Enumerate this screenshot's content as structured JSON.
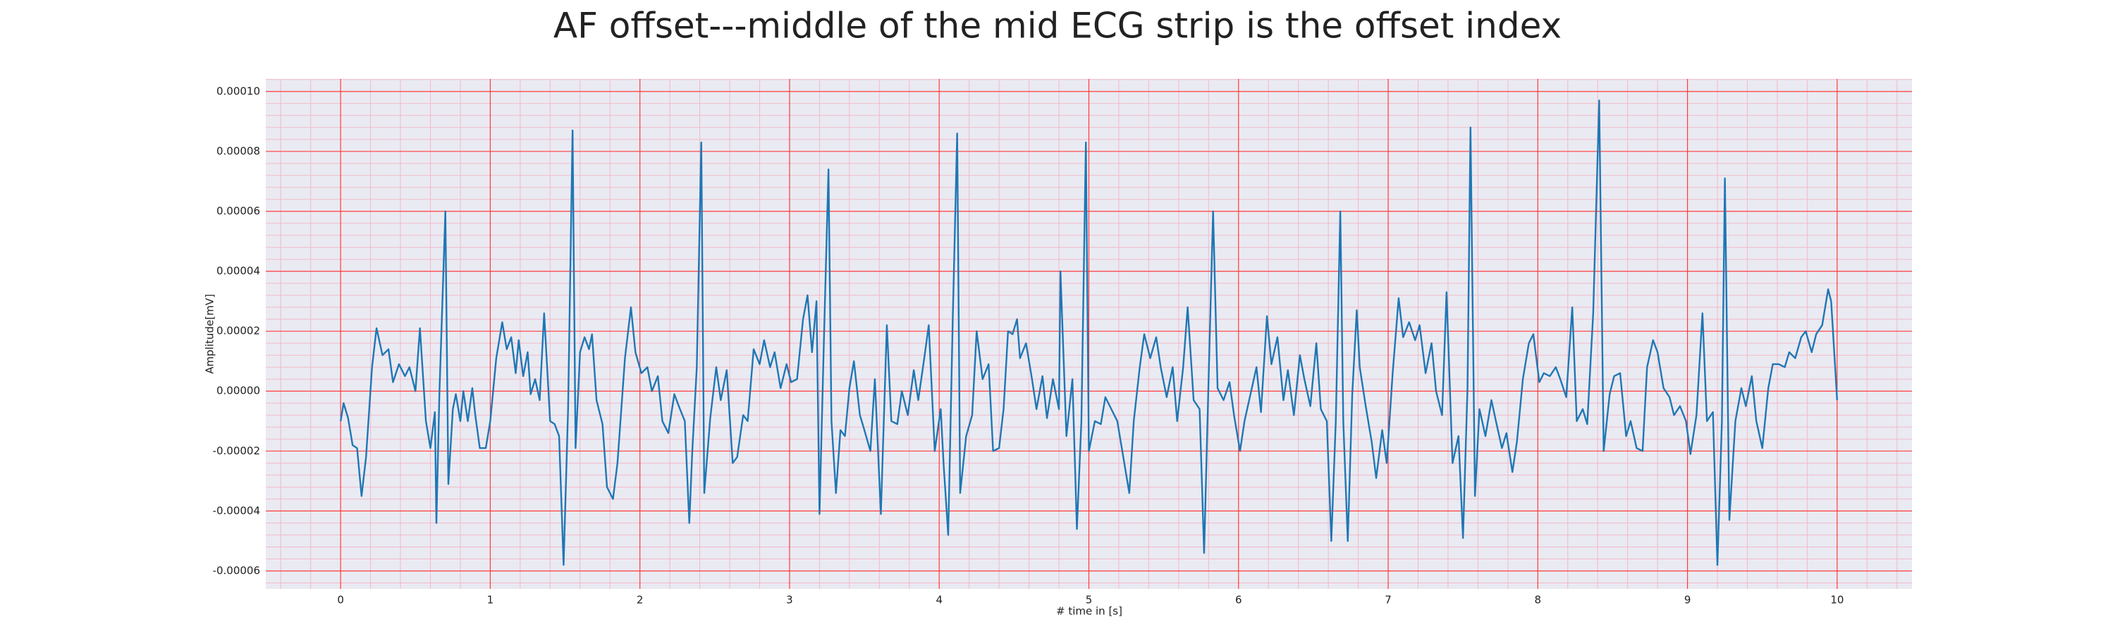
{
  "chart_data": {
    "type": "line",
    "title": "AF offset---middle of the mid ECG strip is the offset index",
    "xlabel": "# time in [s]",
    "ylabel": "Amplitude[mV]",
    "xlim": [
      -0.5,
      10.5
    ],
    "ylim": [
      -6.6e-05,
      0.0001042
    ],
    "xticks": [
      0,
      1,
      2,
      3,
      4,
      5,
      6,
      7,
      8,
      9,
      10
    ],
    "yticks": [
      {
        "value": -6e-05,
        "label": "-0.00006"
      },
      {
        "value": -4e-05,
        "label": "-0.00004"
      },
      {
        "value": -2e-05,
        "label": "-0.00002"
      },
      {
        "value": 0,
        "label": "0.00000"
      },
      {
        "value": 2e-05,
        "label": "0.00002"
      },
      {
        "value": 4e-05,
        "label": "0.00004"
      },
      {
        "value": 6e-05,
        "label": "0.00006"
      },
      {
        "value": 8e-05,
        "label": "0.00008"
      },
      {
        "value": 0.0001,
        "label": "0.00010"
      }
    ],
    "grid": true,
    "minor_grid": true,
    "grid_color": "#ff3b3b",
    "minor_grid_color": "#f2b9c8",
    "background": "#eaeaf2",
    "series": [
      {
        "color": "#1f77b4",
        "x": [
          0,
          0.02,
          0.05,
          0.08,
          0.11,
          0.14,
          0.17,
          0.21,
          0.24,
          0.28,
          0.32,
          0.35,
          0.39,
          0.43,
          0.46,
          0.5,
          0.53,
          0.57,
          0.6,
          0.63,
          0.64,
          0.66,
          0.7,
          0.72,
          0.75,
          0.77,
          0.8,
          0.82,
          0.85,
          0.88,
          0.9,
          0.93,
          0.97,
          1.0,
          1.04,
          1.08,
          1.11,
          1.14,
          1.17,
          1.19,
          1.22,
          1.25,
          1.27,
          1.3,
          1.33,
          1.36,
          1.4,
          1.43,
          1.46,
          1.49,
          1.52,
          1.55,
          1.57,
          1.6,
          1.63,
          1.66,
          1.68,
          1.71,
          1.75,
          1.78,
          1.82,
          1.85,
          1.9,
          1.94,
          1.97,
          2.01,
          2.05,
          2.08,
          2.12,
          2.15,
          2.19,
          2.23,
          2.26,
          2.3,
          2.33,
          2.35,
          2.38,
          2.41,
          2.43,
          2.47,
          2.51,
          2.54,
          2.58,
          2.62,
          2.65,
          2.69,
          2.72,
          2.76,
          2.8,
          2.83,
          2.87,
          2.9,
          2.94,
          2.98,
          3.01,
          3.05,
          3.09,
          3.12,
          3.15,
          3.18,
          3.2,
          3.23,
          3.26,
          3.28,
          3.31,
          3.34,
          3.37,
          3.4,
          3.43,
          3.47,
          3.5,
          3.54,
          3.57,
          3.61,
          3.65,
          3.68,
          3.72,
          3.75,
          3.79,
          3.83,
          3.86,
          3.9,
          3.93,
          3.97,
          4.01,
          4.03,
          4.06,
          4.09,
          4.12,
          4.14,
          4.18,
          4.22,
          4.25,
          4.29,
          4.33,
          4.36,
          4.4,
          4.43,
          4.46,
          4.49,
          4.52,
          4.54,
          4.58,
          4.62,
          4.65,
          4.69,
          4.72,
          4.76,
          4.8,
          4.81,
          4.85,
          4.89,
          4.92,
          4.95,
          4.98,
          5.0,
          5.04,
          5.08,
          5.11,
          5.15,
          5.19,
          5.22,
          5.27,
          5.3,
          5.34,
          5.37,
          5.41,
          5.45,
          5.48,
          5.52,
          5.56,
          5.59,
          5.63,
          5.66,
          5.7,
          5.74,
          5.77,
          5.8,
          5.83,
          5.86,
          5.9,
          5.94,
          5.97,
          6.01,
          6.04,
          6.08,
          6.12,
          6.15,
          6.19,
          6.22,
          6.26,
          6.3,
          6.33,
          6.37,
          6.41,
          6.44,
          6.48,
          6.52,
          6.55,
          6.59,
          6.62,
          6.65,
          6.68,
          6.7,
          6.73,
          6.76,
          6.79,
          6.81,
          6.85,
          6.89,
          6.92,
          6.96,
          6.99,
          7.03,
          7.07,
          7.1,
          7.14,
          7.18,
          7.21,
          7.25,
          7.29,
          7.32,
          7.36,
          7.39,
          7.43,
          7.47,
          7.5,
          7.53,
          7.55,
          7.58,
          7.61,
          7.65,
          7.69,
          7.72,
          7.76,
          7.79,
          7.83,
          7.86,
          7.9,
          7.94,
          7.97,
          8.01,
          8.04,
          8.08,
          8.12,
          8.15,
          8.19,
          8.23,
          8.26,
          8.3,
          8.33,
          8.37,
          8.41,
          8.44,
          8.48,
          8.51,
          8.55,
          8.59,
          8.62,
          8.66,
          8.7,
          8.73,
          8.77,
          8.8,
          8.84,
          8.88,
          8.91,
          8.95,
          8.99,
          9.02,
          9.06,
          9.1,
          9.13,
          9.17,
          9.2,
          9.23,
          9.25,
          9.28,
          9.32,
          9.36,
          9.39,
          9.43,
          9.46,
          9.5,
          9.54,
          9.57,
          9.61,
          9.65,
          9.68,
          9.72,
          9.76,
          9.79,
          9.83,
          9.86,
          9.9,
          9.94,
          9.96,
          10.0
        ],
        "values": [
          -1e-05,
          -4e-06,
          -9e-06,
          -1.8e-05,
          -1.9e-05,
          -3.5e-05,
          -2.2e-05,
          8e-06,
          2.1e-05,
          1.2e-05,
          1.4e-05,
          3e-06,
          9e-06,
          5e-06,
          8e-06,
          0,
          2.1e-05,
          -1e-05,
          -1.9e-05,
          -7e-06,
          -4.4e-05,
          -1e-06,
          6e-05,
          -3.1e-05,
          -6e-06,
          -1e-06,
          -1e-05,
          0,
          -1e-05,
          1e-06,
          -8e-06,
          -1.9e-05,
          -1.9e-05,
          -1e-05,
          1.1e-05,
          2.3e-05,
          1.4e-05,
          1.8e-05,
          6e-06,
          1.7e-05,
          5e-06,
          1.3e-05,
          -1e-06,
          4e-06,
          -3e-06,
          2.6e-05,
          -1e-05,
          -1.1e-05,
          -1.5e-05,
          -5.8e-05,
          -6e-06,
          8.7e-05,
          -1.9e-05,
          1.3e-05,
          1.8e-05,
          1.4e-05,
          1.9e-05,
          -3e-06,
          -1.1e-05,
          -3.2e-05,
          -3.6e-05,
          -2.4e-05,
          1.1e-05,
          2.8e-05,
          1.3e-05,
          6e-06,
          8e-06,
          0,
          5e-06,
          -1e-05,
          -1.4e-05,
          -1e-06,
          -5e-06,
          -1e-05,
          -4.4e-05,
          -2e-05,
          8e-06,
          8.3e-05,
          -3.4e-05,
          -9e-06,
          8e-06,
          -3e-06,
          7e-06,
          -2.4e-05,
          -2.2e-05,
          -8e-06,
          -1e-05,
          1.4e-05,
          9e-06,
          1.7e-05,
          8e-06,
          1.3e-05,
          1e-06,
          9e-06,
          3e-06,
          4e-06,
          2.4e-05,
          3.2e-05,
          1.3e-05,
          3e-05,
          -4.1e-05,
          1.8e-05,
          7.4e-05,
          -1e-05,
          -3.4e-05,
          -1.3e-05,
          -1.5e-05,
          1e-06,
          1e-05,
          -8e-06,
          -1.3e-05,
          -2e-05,
          4e-06,
          -4.1e-05,
          2.2e-05,
          -1e-05,
          -1.1e-05,
          0,
          -8e-06,
          7e-06,
          -3e-06,
          1.1e-05,
          2.2e-05,
          -2e-05,
          -6e-06,
          -2.5e-05,
          -4.8e-05,
          2.3e-05,
          8.6e-05,
          -3.4e-05,
          -1.5e-05,
          -8e-06,
          2e-05,
          4e-06,
          9e-06,
          -2e-05,
          -1.9e-05,
          -6e-06,
          2e-05,
          1.9e-05,
          2.4e-05,
          1.1e-05,
          1.6e-05,
          4e-06,
          -6e-06,
          5e-06,
          -9e-06,
          4e-06,
          -6e-06,
          4e-05,
          -1.5e-05,
          4e-06,
          -4.6e-05,
          -1e-05,
          8.3e-05,
          -2e-05,
          -1e-05,
          -1.1e-05,
          -2e-06,
          -6e-06,
          -1e-05,
          -1.9e-05,
          -3.4e-05,
          -1e-05,
          8e-06,
          1.9e-05,
          1.1e-05,
          1.8e-05,
          8e-06,
          -2e-06,
          8e-06,
          -1e-05,
          8e-06,
          2.8e-05,
          -3e-06,
          -6e-06,
          -5.4e-05,
          4e-06,
          6e-05,
          1e-06,
          -3e-06,
          3e-06,
          -8e-06,
          -2e-05,
          -1e-05,
          -1e-06,
          8e-06,
          -7e-06,
          2.5e-05,
          9e-06,
          1.8e-05,
          -3e-06,
          7e-06,
          -8e-06,
          1.2e-05,
          4e-06,
          -5e-06,
          1.6e-05,
          -6e-06,
          -1e-05,
          -5e-05,
          -1e-05,
          6e-05,
          -1e-05,
          -5e-05,
          -1e-06,
          2.7e-05,
          8e-06,
          -5e-06,
          -1.7e-05,
          -2.9e-05,
          -1.3e-05,
          -2.4e-05,
          6e-06,
          3.1e-05,
          1.8e-05,
          2.3e-05,
          1.7e-05,
          2.2e-05,
          6e-06,
          1.6e-05,
          0,
          -8e-06,
          3.3e-05,
          -2.4e-05,
          -1.5e-05,
          -4.9e-05,
          1e-06,
          8.8e-05,
          -3.5e-05,
          -6e-06,
          -1.5e-05,
          -3e-06,
          -1e-05,
          -1.9e-05,
          -1.4e-05,
          -2.7e-05,
          -1.7e-05,
          4e-06,
          1.6e-05,
          1.9e-05,
          3e-06,
          6e-06,
          5e-06,
          8e-06,
          4e-06,
          -2e-06,
          2.8e-05,
          -1e-05,
          -6e-06,
          -1.1e-05,
          2.6e-05,
          9.7e-05,
          -2e-05,
          -1e-06,
          5e-06,
          6e-06,
          -1.5e-05,
          -1e-05,
          -1.9e-05,
          -2e-05,
          8e-06,
          1.7e-05,
          1.3e-05,
          1e-06,
          -2e-06,
          -8e-06,
          -5e-06,
          -1e-05,
          -2.1e-05,
          -8e-06,
          2.6e-05,
          -1e-05,
          -7e-06,
          -5.8e-05,
          -1e-05,
          7.1e-05,
          -4.3e-05,
          -1e-05,
          1e-06,
          -5e-06,
          5e-06,
          -1e-05,
          -1.9e-05,
          1e-06,
          9e-06,
          9e-06,
          8e-06,
          1.3e-05,
          1.1e-05,
          1.8e-05,
          2e-05,
          1.3e-05,
          1.9e-05,
          2.2e-05,
          3.4e-05,
          3e-05,
          -3e-06
        ]
      }
    ]
  }
}
